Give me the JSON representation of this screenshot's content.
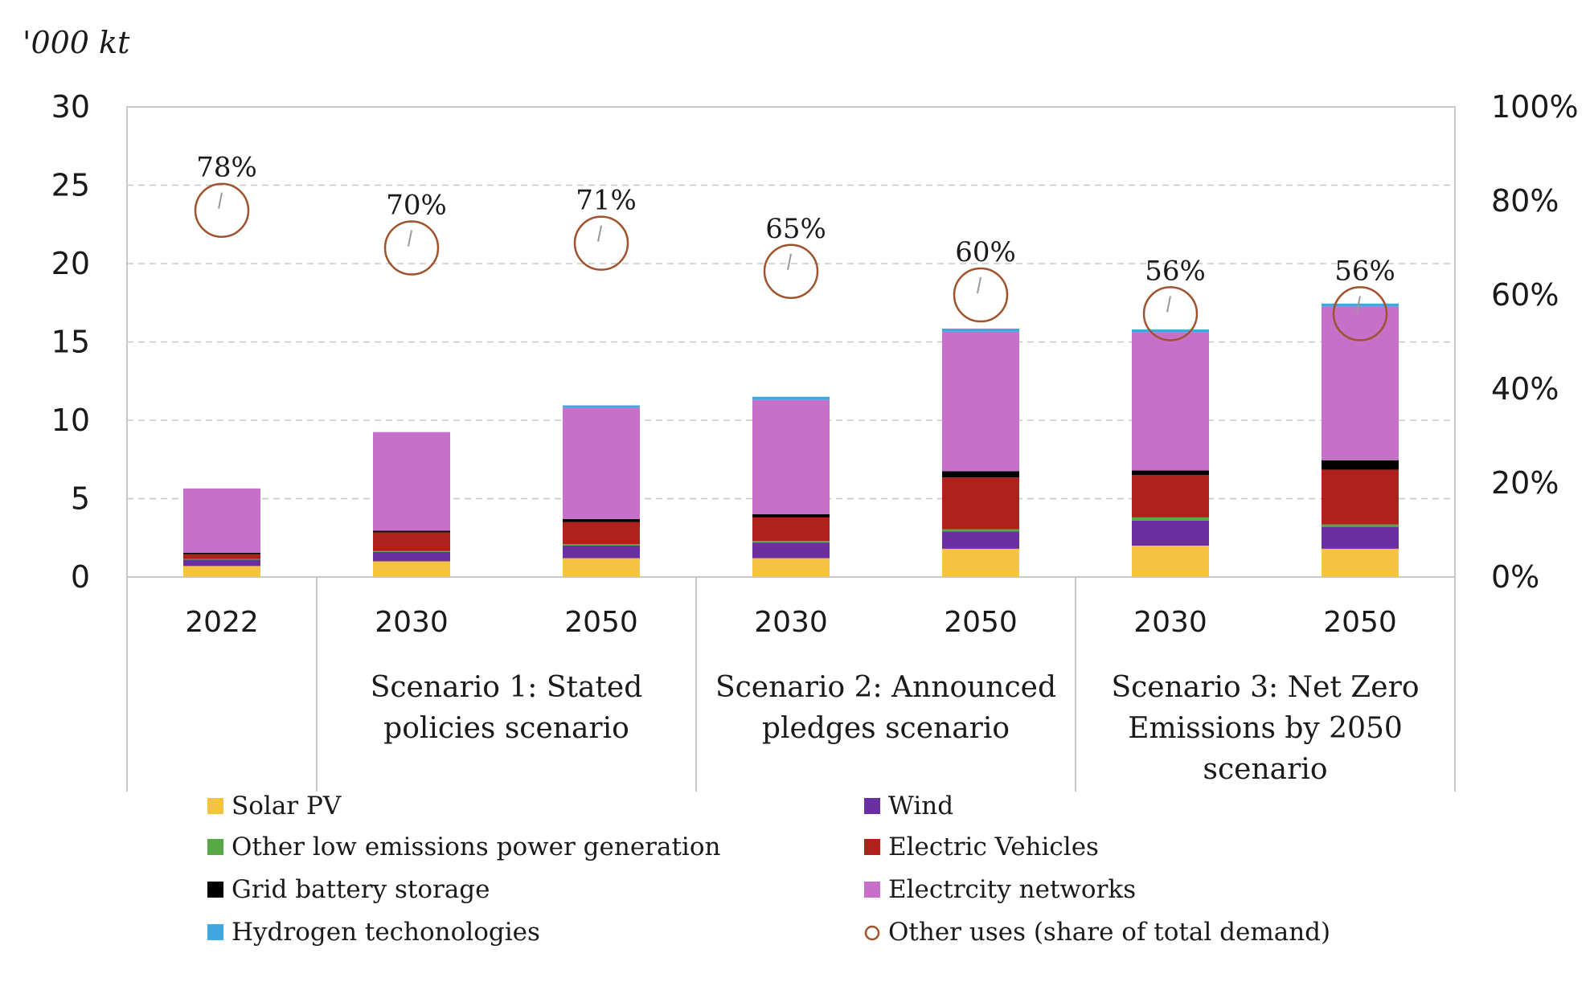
{
  "chart_data": {
    "type": "bar",
    "stacked": true,
    "y_unit_label": "'000 kt",
    "ylim": [
      0,
      30
    ],
    "y_ticks": [
      0,
      5,
      10,
      15,
      20,
      25,
      30
    ],
    "y2lim": [
      0,
      100
    ],
    "y2_ticks": [
      "0%",
      "20%",
      "40%",
      "60%",
      "80%",
      "100%"
    ],
    "grid": "horizontal dashed",
    "legend_position": "bottom",
    "categories": [
      "2022",
      "2030",
      "2050",
      "2030",
      "2050",
      "2030",
      "2050"
    ],
    "groups": [
      {
        "label_lines": [
          "Scenario 1:  Stated",
          "policies scenario"
        ],
        "start": 1,
        "end": 2
      },
      {
        "label_lines": [
          "Scenario 2: Announced",
          "pledges scenario"
        ],
        "start": 3,
        "end": 4
      },
      {
        "label_lines": [
          "Scenario 3: Net Zero",
          "Emissions by 2050",
          "scenario"
        ],
        "start": 5,
        "end": 6
      }
    ],
    "series": [
      {
        "name": "Solar PV",
        "color": "#f5c342",
        "values": [
          0.7,
          1.0,
          1.2,
          1.2,
          1.8,
          2.0,
          1.8
        ]
      },
      {
        "name": "Wind",
        "color": "#6a2fa0",
        "values": [
          0.4,
          0.6,
          0.8,
          1.0,
          1.1,
          1.6,
          1.4
        ]
      },
      {
        "name": "Other low emissions power generation",
        "color": "#58a845",
        "values": [
          0.05,
          0.05,
          0.1,
          0.1,
          0.15,
          0.2,
          0.15
        ]
      },
      {
        "name": "Electric Vehicles",
        "color": "#b0211c",
        "values": [
          0.3,
          1.2,
          1.4,
          1.5,
          3.3,
          2.7,
          3.5
        ]
      },
      {
        "name": "Grid battery storage",
        "color": "#000000",
        "values": [
          0.1,
          0.1,
          0.2,
          0.2,
          0.4,
          0.3,
          0.6
        ]
      },
      {
        "name": "Electrcity networks",
        "color": "#c670c9",
        "values": [
          4.1,
          6.3,
          7.1,
          7.3,
          8.9,
          8.8,
          9.8
        ]
      },
      {
        "name": "Hydrogen techonologies",
        "color": "#3fa7e0",
        "values": [
          0.0,
          0.0,
          0.15,
          0.2,
          0.2,
          0.2,
          0.2
        ]
      }
    ],
    "other_uses": {
      "name": "Other uses (share of total demand)",
      "color": "#a0522d",
      "values": [
        78,
        70,
        71,
        65,
        60,
        56,
        56
      ],
      "labels": [
        "78%",
        "70%",
        "71%",
        "65%",
        "60%",
        "56%",
        "56%"
      ]
    },
    "legend_order": [
      0,
      1,
      2,
      3,
      4,
      5,
      6,
      "other_uses"
    ]
  }
}
